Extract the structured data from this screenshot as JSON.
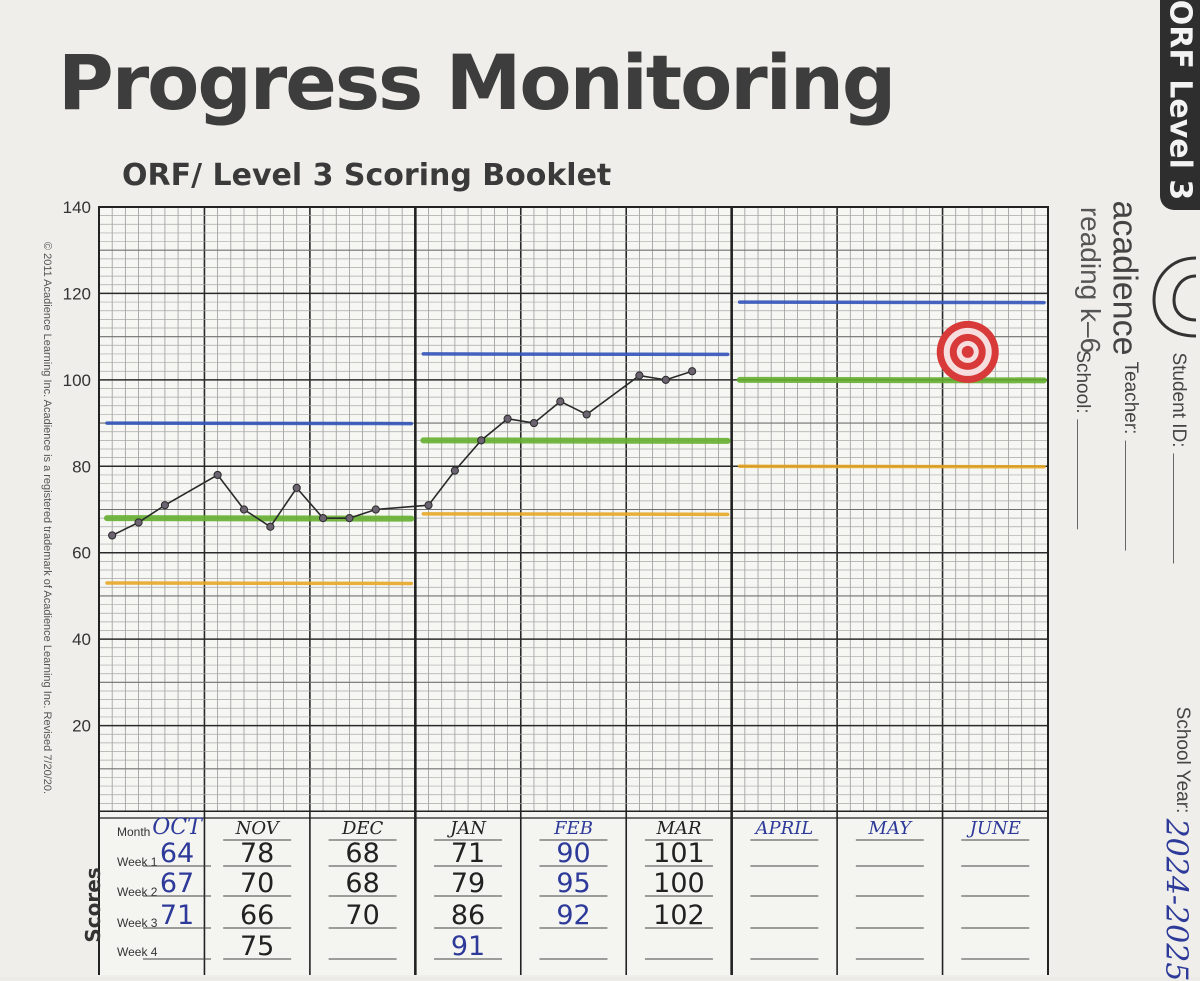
{
  "header": {
    "title": "Progress Monitoring",
    "subtitle": "ORF/ Level 3 Scoring Booklet",
    "side_tab": "ORF Level 3",
    "copyright": "© 2011 Acadience Learning Inc. Acadience is a registered trademark of Acadience Learning Inc. Revised 7/20/20."
  },
  "brand": {
    "name": "acadience",
    "product": "reading k–6",
    "logo_icon": "acadience-logo-icon"
  },
  "form_fields": {
    "student_id_label": "Student ID:",
    "teacher_label": "Teacher:",
    "school_label": "School:",
    "school_year_label": "School Year:",
    "school_year_value": "2024-2025"
  },
  "chart_data": {
    "type": "line",
    "title": "",
    "xlabel": "",
    "ylabel": "",
    "ylim": [
      0,
      140
    ],
    "y_ticks": [
      20,
      40,
      60,
      80,
      100,
      120,
      140
    ],
    "grid": true,
    "months": [
      "OCT",
      "NOV",
      "DEC",
      "JAN",
      "FEB",
      "MAR",
      "APRIL",
      "MAY",
      "JUNE"
    ],
    "series": [
      {
        "color": "#2a2a2a",
        "points": [
          {
            "month": "OCT",
            "week": 1,
            "y": 64
          },
          {
            "month": "OCT",
            "week": 2,
            "y": 67
          },
          {
            "month": "OCT",
            "week": 3,
            "y": 71
          },
          {
            "month": "NOV",
            "week": 1,
            "y": 78
          },
          {
            "month": "NOV",
            "week": 2,
            "y": 70
          },
          {
            "month": "NOV",
            "week": 3,
            "y": 66
          },
          {
            "month": "NOV",
            "week": 4,
            "y": 75
          },
          {
            "month": "DEC",
            "week": 1,
            "y": 68
          },
          {
            "month": "DEC",
            "week": 2,
            "y": 68
          },
          {
            "month": "DEC",
            "week": 3,
            "y": 70
          },
          {
            "month": "JAN",
            "week": 1,
            "y": 71
          },
          {
            "month": "JAN",
            "week": 2,
            "y": 79
          },
          {
            "month": "JAN",
            "week": 3,
            "y": 86
          },
          {
            "month": "JAN",
            "week": 4,
            "y": 91
          },
          {
            "month": "FEB",
            "week": 1,
            "y": 90
          },
          {
            "month": "FEB",
            "week": 2,
            "y": 95
          },
          {
            "month": "FEB",
            "week": 3,
            "y": 92
          },
          {
            "month": "MAR",
            "week": 1,
            "y": 101
          },
          {
            "month": "MAR",
            "week": 2,
            "y": 100
          },
          {
            "month": "MAR",
            "week": 3,
            "y": 102
          }
        ]
      }
    ],
    "benchmark_lines": [
      {
        "color": "#3355bb",
        "from_month": "OCT",
        "to_month": "DEC",
        "y": 90
      },
      {
        "color": "#66b030",
        "from_month": "OCT",
        "to_month": "DEC",
        "y": 68
      },
      {
        "color": "#e8a828",
        "from_month": "OCT",
        "to_month": "DEC",
        "y": 53
      },
      {
        "color": "#3355bb",
        "from_month": "JAN",
        "to_month": "MAR",
        "y": 106
      },
      {
        "color": "#66b030",
        "from_month": "JAN",
        "to_month": "MAR",
        "y": 86
      },
      {
        "color": "#e8a828",
        "from_month": "JAN",
        "to_month": "MAR",
        "y": 69
      },
      {
        "color": "#3355bb",
        "from_month": "APRIL",
        "to_month": "JUNE",
        "y": 118
      },
      {
        "color": "#66b030",
        "from_month": "APRIL",
        "to_month": "JUNE",
        "y": 100
      },
      {
        "color": "#e8a828",
        "from_month": "APRIL",
        "to_month": "JUNE",
        "y": 80
      }
    ],
    "goal_marker": {
      "icon": "target-icon",
      "month": "JUNE",
      "week": 1,
      "y": 106,
      "color": "#d83a3a"
    }
  },
  "score_table": {
    "axis_label": "Scores",
    "row_labels": [
      "Month",
      "Week 1",
      "Week 2",
      "Week 3",
      "Week 4"
    ],
    "ink_colors": {
      "blue": "#2d3a99",
      "black": "#222222"
    },
    "columns": [
      {
        "month": "OCT",
        "scores": [
          "64",
          "67",
          "71",
          ""
        ],
        "ink": "blue"
      },
      {
        "month": "NOV",
        "scores": [
          "78",
          "70",
          "66",
          "75"
        ],
        "ink": "black"
      },
      {
        "month": "DEC",
        "scores": [
          "68",
          "68",
          "70",
          ""
        ],
        "ink": "black"
      },
      {
        "month": "JAN",
        "scores": [
          "71",
          "79",
          "86",
          "91"
        ],
        "ink": "black"
      },
      {
        "month": "FEB",
        "scores": [
          "90",
          "95",
          "92",
          ""
        ],
        "ink": "blue"
      },
      {
        "month": "MAR",
        "scores": [
          "101",
          "100",
          "102",
          ""
        ],
        "ink": "black"
      },
      {
        "month": "APRIL",
        "scores": [
          "",
          "",
          "",
          ""
        ],
        "ink": "blue"
      },
      {
        "month": "MAY",
        "scores": [
          "",
          "",
          "",
          ""
        ],
        "ink": "blue"
      },
      {
        "month": "JUNE",
        "scores": [
          "",
          "",
          "",
          ""
        ],
        "ink": "blue"
      }
    ]
  }
}
